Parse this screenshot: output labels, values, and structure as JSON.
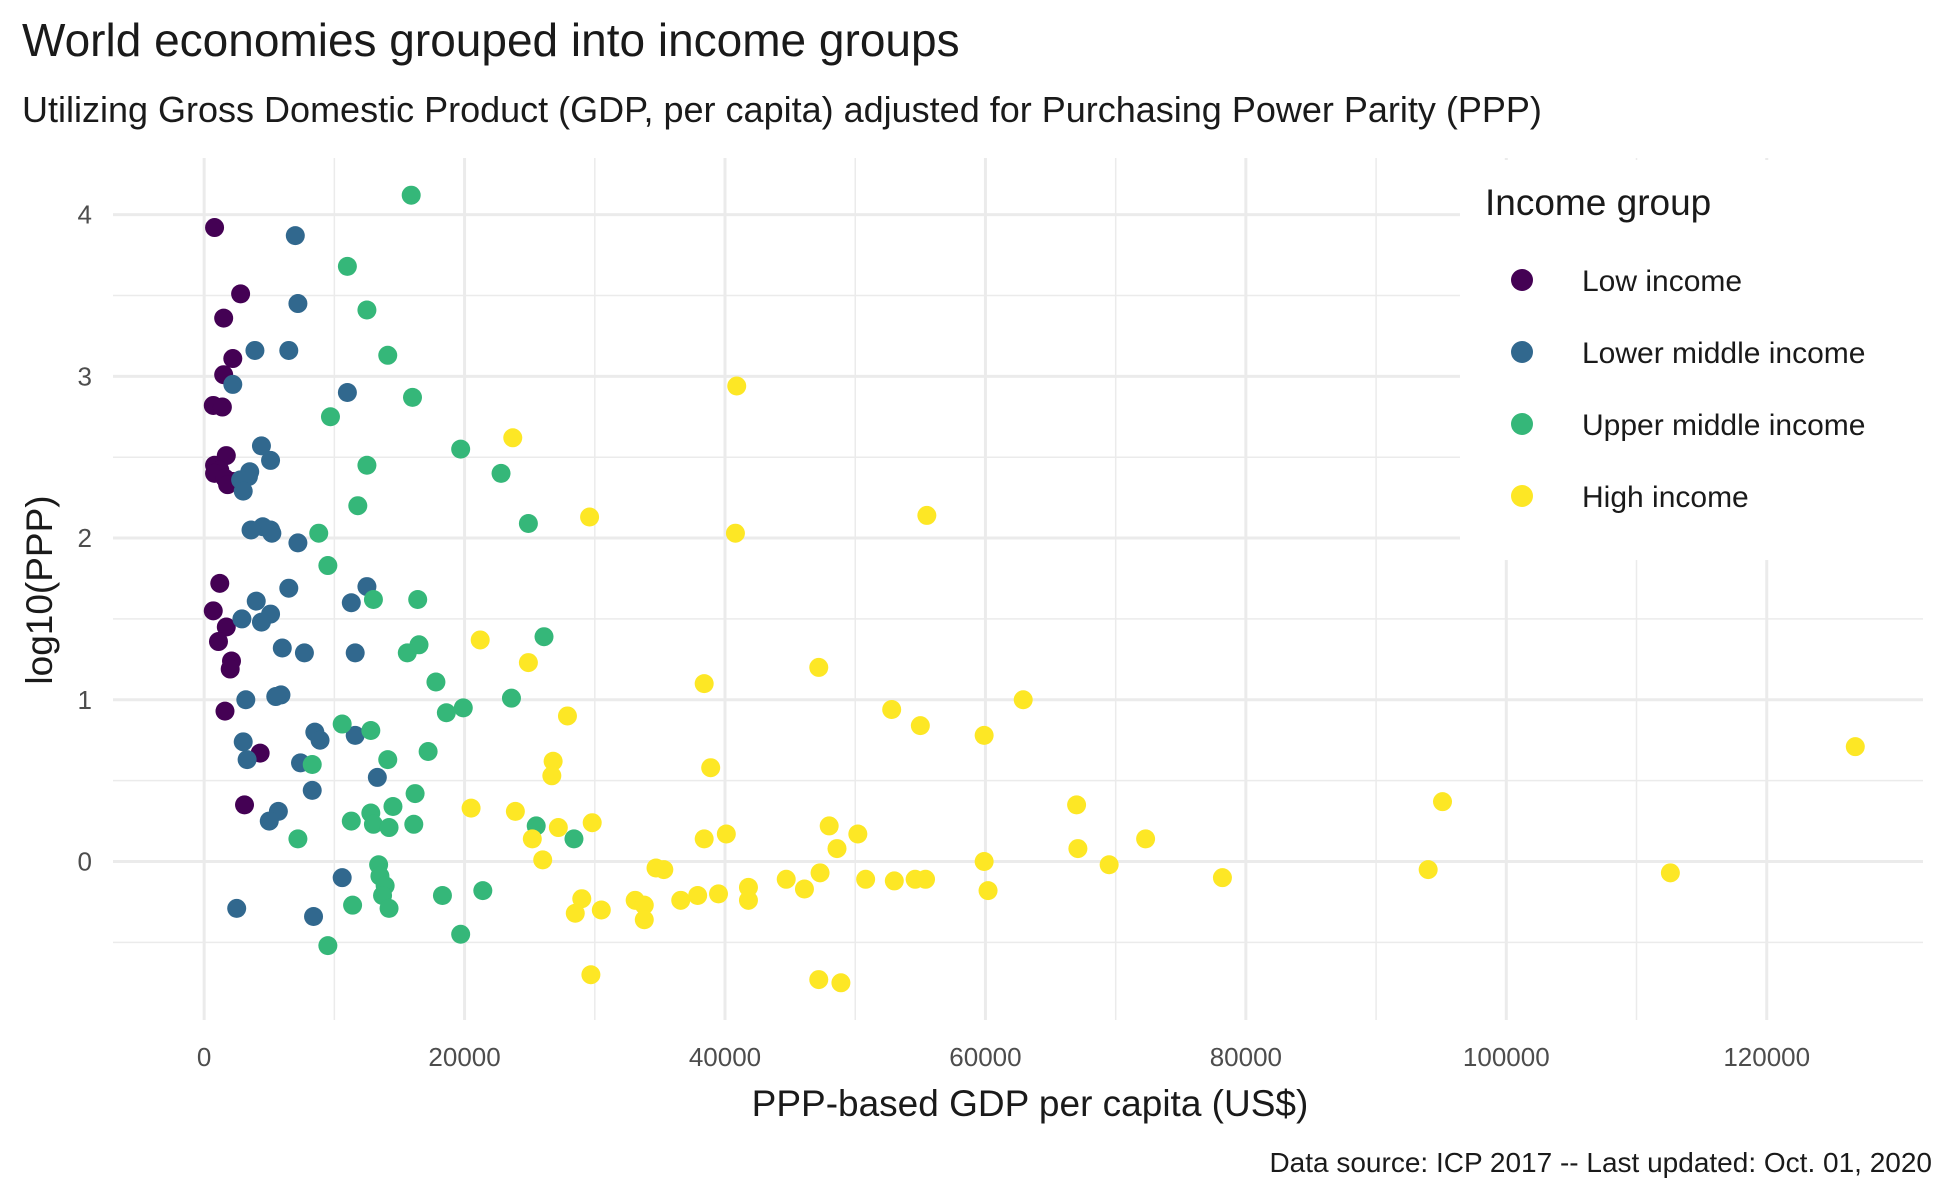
{
  "chart_data": {
    "type": "scatter",
    "title": "World economies grouped into income groups",
    "subtitle": "Utilizing Gross Domestic Product (GDP, per capita) adjusted for Purchasing Power Parity (PPP)",
    "xlabel": "PPP-based GDP per capita (US$)",
    "ylabel": "log10(PPP)",
    "caption": "Data source: ICP 2017 -- Last updated: Oct. 01, 2020",
    "xlim": [
      -7000,
      132000
    ],
    "ylim": [
      -0.98,
      4.35
    ],
    "xticks": [
      0,
      20000,
      40000,
      60000,
      80000,
      100000,
      120000
    ],
    "xtick_labels": [
      "0",
      "20000",
      "40000",
      "60000",
      "80000",
      "100000",
      "120000"
    ],
    "yticks": [
      0,
      1,
      2,
      3,
      4
    ],
    "ytick_labels": [
      "0",
      "1",
      "2",
      "3",
      "4"
    ],
    "grid": true,
    "legend": {
      "title": "Income group",
      "position": "top-right"
    },
    "series": [
      {
        "name": "Low income",
        "color": "#440154",
        "points": [
          [
            800,
            3.92
          ],
          [
            2800,
            3.51
          ],
          [
            1500,
            3.36
          ],
          [
            2200,
            3.11
          ],
          [
            1500,
            3.01
          ],
          [
            700,
            2.82
          ],
          [
            1400,
            2.81
          ],
          [
            1700,
            2.51
          ],
          [
            800,
            2.45
          ],
          [
            1200,
            2.42
          ],
          [
            800,
            2.4
          ],
          [
            1600,
            2.37
          ],
          [
            2200,
            2.35
          ],
          [
            1800,
            2.33
          ],
          [
            1200,
            1.72
          ],
          [
            700,
            1.55
          ],
          [
            1700,
            1.45
          ],
          [
            1100,
            1.36
          ],
          [
            2100,
            1.24
          ],
          [
            2000,
            1.19
          ],
          [
            1600,
            0.93
          ],
          [
            4300,
            0.67
          ],
          [
            3100,
            0.35
          ]
        ]
      },
      {
        "name": "Lower middle income",
        "color": "#31688E",
        "points": [
          [
            7000,
            3.87
          ],
          [
            7200,
            3.45
          ],
          [
            3900,
            3.16
          ],
          [
            6500,
            3.16
          ],
          [
            2200,
            2.95
          ],
          [
            11000,
            2.9
          ],
          [
            4400,
            2.57
          ],
          [
            5100,
            2.48
          ],
          [
            3500,
            2.41
          ],
          [
            3400,
            2.38
          ],
          [
            2800,
            2.36
          ],
          [
            3000,
            2.29
          ],
          [
            4500,
            2.07
          ],
          [
            5100,
            2.05
          ],
          [
            3600,
            2.05
          ],
          [
            5200,
            2.03
          ],
          [
            7200,
            1.97
          ],
          [
            6500,
            1.69
          ],
          [
            12500,
            1.7
          ],
          [
            11300,
            1.6
          ],
          [
            4000,
            1.61
          ],
          [
            5100,
            1.53
          ],
          [
            2900,
            1.5
          ],
          [
            4400,
            1.48
          ],
          [
            6000,
            1.32
          ],
          [
            7700,
            1.29
          ],
          [
            11600,
            1.29
          ],
          [
            5900,
            1.03
          ],
          [
            5500,
            1.02
          ],
          [
            3200,
            1.0
          ],
          [
            8500,
            0.8
          ],
          [
            8900,
            0.75
          ],
          [
            11600,
            0.78
          ],
          [
            3000,
            0.74
          ],
          [
            3300,
            0.63
          ],
          [
            7400,
            0.61
          ],
          [
            13300,
            0.52
          ],
          [
            8300,
            0.44
          ],
          [
            5700,
            0.31
          ],
          [
            5000,
            0.25
          ],
          [
            2500,
            -0.29
          ],
          [
            8400,
            -0.34
          ],
          [
            10600,
            -0.1
          ]
        ]
      },
      {
        "name": "Upper middle income",
        "color": "#35B779",
        "points": [
          [
            15900,
            4.12
          ],
          [
            11000,
            3.68
          ],
          [
            12500,
            3.41
          ],
          [
            14100,
            3.13
          ],
          [
            16000,
            2.87
          ],
          [
            9700,
            2.75
          ],
          [
            19700,
            2.55
          ],
          [
            22800,
            2.4
          ],
          [
            12500,
            2.45
          ],
          [
            11800,
            2.2
          ],
          [
            24900,
            2.09
          ],
          [
            8800,
            2.03
          ],
          [
            9500,
            1.83
          ],
          [
            13000,
            1.62
          ],
          [
            16400,
            1.62
          ],
          [
            16500,
            1.34
          ],
          [
            15600,
            1.29
          ],
          [
            26100,
            1.39
          ],
          [
            17800,
            1.11
          ],
          [
            23600,
            1.01
          ],
          [
            19900,
            0.95
          ],
          [
            18600,
            0.92
          ],
          [
            10600,
            0.85
          ],
          [
            12800,
            0.81
          ],
          [
            17200,
            0.68
          ],
          [
            14100,
            0.63
          ],
          [
            8300,
            0.6
          ],
          [
            16200,
            0.42
          ],
          [
            14500,
            0.34
          ],
          [
            12800,
            0.3
          ],
          [
            11300,
            0.25
          ],
          [
            13000,
            0.23
          ],
          [
            16100,
            0.23
          ],
          [
            14200,
            0.21
          ],
          [
            25500,
            0.22
          ],
          [
            28400,
            0.14
          ],
          [
            7200,
            0.14
          ],
          [
            13400,
            -0.02
          ],
          [
            13500,
            -0.09
          ],
          [
            13900,
            -0.15
          ],
          [
            13700,
            -0.21
          ],
          [
            21400,
            -0.18
          ],
          [
            18300,
            -0.21
          ],
          [
            11400,
            -0.27
          ],
          [
            14200,
            -0.29
          ],
          [
            19700,
            -0.45
          ],
          [
            9500,
            -0.52
          ]
        ]
      },
      {
        "name": "High income",
        "color": "#FDE725",
        "points": [
          [
            40900,
            2.94
          ],
          [
            23700,
            2.62
          ],
          [
            29600,
            2.13
          ],
          [
            55500,
            2.14
          ],
          [
            40800,
            2.03
          ],
          [
            21200,
            1.37
          ],
          [
            24900,
            1.23
          ],
          [
            47200,
            1.2
          ],
          [
            38400,
            1.1
          ],
          [
            62900,
            1.0
          ],
          [
            52800,
            0.94
          ],
          [
            27900,
            0.9
          ],
          [
            55000,
            0.84
          ],
          [
            59900,
            0.78
          ],
          [
            126800,
            0.71
          ],
          [
            26800,
            0.62
          ],
          [
            38900,
            0.58
          ],
          [
            26700,
            0.53
          ],
          [
            95100,
            0.37
          ],
          [
            67000,
            0.35
          ],
          [
            20500,
            0.33
          ],
          [
            23900,
            0.31
          ],
          [
            29800,
            0.24
          ],
          [
            48000,
            0.22
          ],
          [
            27200,
            0.21
          ],
          [
            50200,
            0.17
          ],
          [
            40100,
            0.17
          ],
          [
            38400,
            0.14
          ],
          [
            25200,
            0.14
          ],
          [
            72300,
            0.14
          ],
          [
            48600,
            0.08
          ],
          [
            67100,
            0.08
          ],
          [
            26000,
            0.01
          ],
          [
            59900,
            0.0
          ],
          [
            69500,
            -0.02
          ],
          [
            94000,
            -0.05
          ],
          [
            34700,
            -0.04
          ],
          [
            35300,
            -0.05
          ],
          [
            47300,
            -0.07
          ],
          [
            112600,
            -0.07
          ],
          [
            78200,
            -0.1
          ],
          [
            50800,
            -0.11
          ],
          [
            44700,
            -0.11
          ],
          [
            53000,
            -0.12
          ],
          [
            54600,
            -0.11
          ],
          [
            55400,
            -0.11
          ],
          [
            41800,
            -0.16
          ],
          [
            46100,
            -0.17
          ],
          [
            60200,
            -0.18
          ],
          [
            39500,
            -0.2
          ],
          [
            37900,
            -0.21
          ],
          [
            36600,
            -0.24
          ],
          [
            33100,
            -0.24
          ],
          [
            41800,
            -0.24
          ],
          [
            29000,
            -0.23
          ],
          [
            33800,
            -0.27
          ],
          [
            30500,
            -0.3
          ],
          [
            28500,
            -0.32
          ],
          [
            33800,
            -0.36
          ],
          [
            29700,
            -0.7
          ],
          [
            47200,
            -0.73
          ],
          [
            48900,
            -0.75
          ]
        ]
      }
    ]
  }
}
